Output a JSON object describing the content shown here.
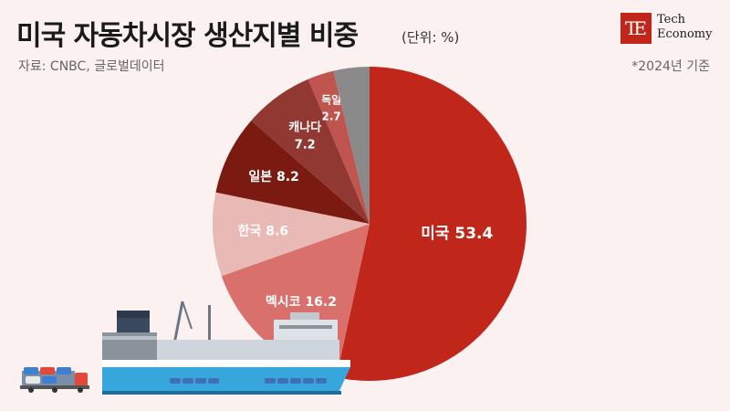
{
  "header": {
    "title": "미국 자동차시장 생산지별 비중",
    "unit": "(단위: %)",
    "source": "자료: CNBC, 글로벌데이터",
    "note": "*2024년 기준"
  },
  "logo": {
    "mark": "TE",
    "line1": "Tech",
    "line2": "Economy"
  },
  "chart_data": {
    "type": "pie",
    "title": "미국 자동차시장 생산지별 비중",
    "unit": "%",
    "slices": [
      {
        "label": "미국",
        "value": 53.4,
        "color": "#c0271a"
      },
      {
        "label": "멕시코",
        "value": 16.2,
        "color": "#d9706c"
      },
      {
        "label": "한국",
        "value": 8.6,
        "color": "#e9b9b6"
      },
      {
        "label": "일본",
        "value": 8.2,
        "color": "#7a1a10"
      },
      {
        "label": "캐나다",
        "value": 7.2,
        "color": "#913832"
      },
      {
        "label": "독일",
        "value": 2.7,
        "color": "#c0544f"
      },
      {
        "label": "",
        "value": 3.7,
        "color": "#8a8a8a"
      }
    ],
    "start_angle_deg": 0,
    "direction": "clockwise"
  }
}
